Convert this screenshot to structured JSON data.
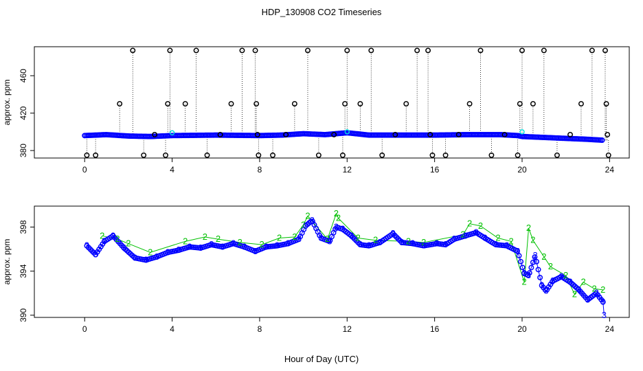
{
  "title": "HDP_130908  CO2 Timeseries",
  "colors": {
    "frame": "#000000",
    "series1": "#0000ff",
    "series2": "#00c000",
    "series3": "#00dddd",
    "outlier": "#000000"
  },
  "chart_data": [
    {
      "type": "scatter",
      "panel": "top",
      "xlabel": "",
      "ylabel": "approx. ppm",
      "xlim": [
        -2.3,
        24.9
      ],
      "ylim": [
        372,
        491
      ],
      "xticks": [
        "0",
        "4",
        "8",
        "12",
        "16",
        "20",
        "24"
      ],
      "yticks": [
        "380",
        "420",
        "460"
      ],
      "xtick_values": [
        0,
        4,
        8,
        12,
        16,
        20,
        24
      ],
      "ytick_values": [
        380,
        420,
        460
      ],
      "baseline": [
        [
          0,
          396
        ],
        [
          1,
          397
        ],
        [
          2,
          395.5
        ],
        [
          3,
          395
        ],
        [
          4,
          396
        ],
        [
          6,
          396.5
        ],
        [
          8,
          396
        ],
        [
          9,
          396.5
        ],
        [
          10,
          398
        ],
        [
          11,
          397
        ],
        [
          12,
          399
        ],
        [
          13,
          396.5
        ],
        [
          16,
          396.5
        ],
        [
          17.5,
          397
        ],
        [
          19,
          397
        ],
        [
          19.8,
          396
        ],
        [
          20,
          395
        ],
        [
          21,
          394
        ],
        [
          22,
          393
        ],
        [
          23,
          392
        ],
        [
          23.7,
          391
        ]
      ],
      "spikes": [
        [
          0.1,
          375
        ],
        [
          0.5,
          375
        ],
        [
          1.6,
          430
        ],
        [
          2.2,
          487
        ],
        [
          2.7,
          375
        ],
        [
          3.2,
          397
        ],
        [
          3.7,
          375
        ],
        [
          3.8,
          430
        ],
        [
          3.9,
          487
        ],
        [
          4.6,
          430
        ],
        [
          5.1,
          487
        ],
        [
          5.6,
          375
        ],
        [
          6.2,
          397
        ],
        [
          6.7,
          430
        ],
        [
          7.2,
          487
        ],
        [
          7.8,
          487
        ],
        [
          7.85,
          430
        ],
        [
          7.9,
          397
        ],
        [
          7.95,
          375
        ],
        [
          8.6,
          375
        ],
        [
          9.2,
          397
        ],
        [
          9.6,
          430
        ],
        [
          10.2,
          487
        ],
        [
          10.7,
          375
        ],
        [
          11.4,
          397
        ],
        [
          11.8,
          375
        ],
        [
          11.9,
          430
        ],
        [
          12.0,
          487
        ],
        [
          12.6,
          430
        ],
        [
          13.1,
          487
        ],
        [
          13.6,
          375
        ],
        [
          14.2,
          397
        ],
        [
          14.7,
          430
        ],
        [
          15.2,
          487
        ],
        [
          15.7,
          487
        ],
        [
          15.8,
          397
        ],
        [
          15.9,
          375
        ],
        [
          16.5,
          375
        ],
        [
          17.1,
          397
        ],
        [
          17.6,
          430
        ],
        [
          18.1,
          487
        ],
        [
          18.6,
          375
        ],
        [
          19.2,
          397
        ],
        [
          19.8,
          375
        ],
        [
          19.9,
          430
        ],
        [
          20.0,
          487
        ],
        [
          20.5,
          430
        ],
        [
          21.0,
          487
        ],
        [
          21.6,
          375
        ],
        [
          22.2,
          397
        ],
        [
          22.7,
          430
        ],
        [
          23.2,
          487
        ],
        [
          23.8,
          487
        ],
        [
          23.85,
          430
        ],
        [
          23.9,
          397
        ],
        [
          23.95,
          375
        ]
      ]
    },
    {
      "type": "scatter",
      "panel": "bottom",
      "xlabel": "Hour of Day (UTC)",
      "ylabel": "approx. ppm",
      "xlim": [
        -2.3,
        24.9
      ],
      "ylim": [
        389.8,
        399.9
      ],
      "xticks": [
        "0",
        "4",
        "8",
        "12",
        "16",
        "20",
        "24"
      ],
      "yticks": [
        "390",
        "394",
        "398"
      ],
      "xtick_values": [
        0,
        4,
        8,
        12,
        16,
        20,
        24
      ],
      "ytick_values": [
        390,
        394,
        398
      ],
      "series": [
        {
          "label": "3",
          "points": [
            [
              0.1,
              396.3
            ],
            [
              0.5,
              395.5
            ],
            [
              0.9,
              396.7
            ],
            [
              1.3,
              397.2
            ],
            [
              1.8,
              396.1
            ],
            [
              2.3,
              395.2
            ],
            [
              2.8,
              395.0
            ],
            [
              3.3,
              395.3
            ],
            [
              3.8,
              395.7
            ],
            [
              4.3,
              395.9
            ],
            [
              4.8,
              396.2
            ],
            [
              5.3,
              396.1
            ],
            [
              5.8,
              396.4
            ],
            [
              6.3,
              396.2
            ],
            [
              6.8,
              396.5
            ],
            [
              7.3,
              396.2
            ],
            [
              7.8,
              395.8
            ],
            [
              8.3,
              396.2
            ],
            [
              8.8,
              396.3
            ],
            [
              9.3,
              396.5
            ],
            [
              9.8,
              396.9
            ],
            [
              10.1,
              398.1
            ],
            [
              10.4,
              398.6
            ],
            [
              10.8,
              397.0
            ],
            [
              11.2,
              396.7
            ],
            [
              11.5,
              398.0
            ],
            [
              11.8,
              397.8
            ],
            [
              12.2,
              397.2
            ],
            [
              12.6,
              396.4
            ],
            [
              13.0,
              396.3
            ],
            [
              13.5,
              396.6
            ],
            [
              14.1,
              397.4
            ],
            [
              14.5,
              396.6
            ],
            [
              15.0,
              396.5
            ],
            [
              15.5,
              396.3
            ],
            [
              16.1,
              396.5
            ],
            [
              16.5,
              396.4
            ],
            [
              16.9,
              396.9
            ],
            [
              17.4,
              397.2
            ],
            [
              17.9,
              397.5
            ],
            [
              18.3,
              397.0
            ],
            [
              18.8,
              396.4
            ],
            [
              19.3,
              396.3
            ],
            [
              19.8,
              395.8
            ],
            [
              20.1,
              393.8
            ],
            [
              20.3,
              393.6
            ],
            [
              20.6,
              395.4
            ],
            [
              20.9,
              392.7
            ],
            [
              21.1,
              392.2
            ],
            [
              21.4,
              393.1
            ],
            [
              21.8,
              393.5
            ],
            [
              22.2,
              393.0
            ],
            [
              22.6,
              392.3
            ],
            [
              23.0,
              391.4
            ],
            [
              23.4,
              392.0
            ],
            [
              23.7,
              391.2
            ],
            [
              23.75,
              390.0
            ]
          ]
        },
        {
          "label": "2",
          "points": [
            [
              0.8,
              397.2
            ],
            [
              1.5,
              396.9
            ],
            [
              2.0,
              396.5
            ],
            [
              3.0,
              395.7
            ],
            [
              4.6,
              396.7
            ],
            [
              5.5,
              397.1
            ],
            [
              6.1,
              396.9
            ],
            [
              7.1,
              396.6
            ],
            [
              8.1,
              396.4
            ],
            [
              8.9,
              397.0
            ],
            [
              9.6,
              397.1
            ],
            [
              10.0,
              398.2
            ],
            [
              10.2,
              399.0
            ],
            [
              11.1,
              396.9
            ],
            [
              11.5,
              399.2
            ],
            [
              11.6,
              398.8
            ],
            [
              12.5,
              397.0
            ],
            [
              13.3,
              396.8
            ],
            [
              14.8,
              396.7
            ],
            [
              15.5,
              396.6
            ],
            [
              17.3,
              397.3
            ],
            [
              17.6,
              398.3
            ],
            [
              18.1,
              398.1
            ],
            [
              18.9,
              397.0
            ],
            [
              19.5,
              396.7
            ],
            [
              20.1,
              393.0
            ],
            [
              20.3,
              397.9
            ],
            [
              20.5,
              396.8
            ],
            [
              21.0,
              395.3
            ],
            [
              21.3,
              394.4
            ],
            [
              22.0,
              393.6
            ],
            [
              22.4,
              391.9
            ],
            [
              22.8,
              393.0
            ],
            [
              23.3,
              392.4
            ],
            [
              23.7,
              392.3
            ]
          ]
        }
      ]
    }
  ]
}
